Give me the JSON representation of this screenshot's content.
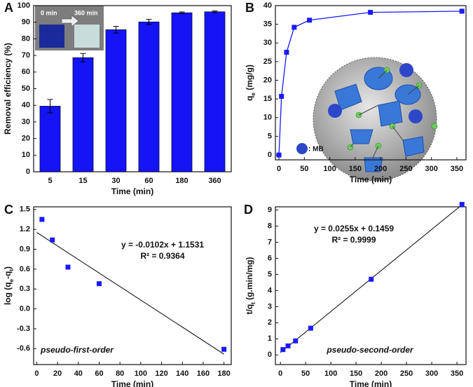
{
  "chart_data": [
    {
      "type": "bar",
      "label": "A",
      "xlabel": "Time (min)",
      "ylabel": [
        "Removal efficiency (%)"
      ],
      "categories": [
        "5",
        "15",
        "30",
        "60",
        "180",
        "360"
      ],
      "values": [
        39.5,
        68.7,
        85.5,
        90.2,
        95.7,
        96.3
      ],
      "errors": [
        4,
        2.5,
        2,
        1.5,
        0.5,
        0.5
      ],
      "color": "#1414f5",
      "ylim": [
        0,
        100
      ],
      "yticks": [
        0,
        10,
        20,
        30,
        40,
        50,
        60,
        70,
        80,
        90,
        100
      ],
      "inset_labels": [
        "0 min",
        "360 min"
      ]
    },
    {
      "type": "line",
      "label": "B",
      "xlabel": "Time (min)",
      "ylabel": [
        "q",
        "e",
        " (mg/g)"
      ],
      "x": [
        0,
        5,
        15,
        30,
        60,
        180,
        360
      ],
      "values": [
        0,
        15.7,
        27.5,
        34.2,
        36.1,
        38.2,
        38.5
      ],
      "color": "#1a1aff",
      "xlim": [
        -7,
        368
      ],
      "xticks": [
        0,
        50,
        100,
        150,
        200,
        250,
        300,
        350
      ],
      "ylim": [
        -1.3,
        40
      ],
      "yticks": [
        0,
        5,
        10,
        15,
        20,
        25,
        30,
        35,
        40
      ],
      "inset_labels": [
        ": MB"
      ]
    },
    {
      "type": "scatter",
      "label": "C",
      "xlabel": "Time (min)",
      "ylabel": [
        "log (q",
        "e",
        "-q",
        "t",
        ")"
      ],
      "x": [
        5,
        15,
        30,
        60,
        180
      ],
      "values": [
        1.35,
        1.04,
        0.63,
        0.38,
        -0.61
      ],
      "color": "#1a1aff",
      "xlim": [
        -3,
        187
      ],
      "xticks": [
        0,
        20,
        40,
        60,
        80,
        100,
        120,
        140,
        160,
        180
      ],
      "ylim": [
        -0.84,
        1.54
      ],
      "yticks": [
        -0.6,
        -0.3,
        {
          "value": 0,
          "label": "0.0"
        },
        0.3,
        0.6,
        0.9,
        1.2,
        1.5
      ],
      "fit": {
        "slope": -0.0102,
        "intercept": 1.1531
      },
      "equation": "y = -0.0102x + 1.1531",
      "r2": "R² = 0.9364",
      "note": "pseudo-first-order"
    },
    {
      "type": "scatter",
      "label": "D",
      "xlabel": "Time (min)",
      "ylabel": [
        "t/q",
        "t",
        " (g.min/mg)"
      ],
      "x": [
        5,
        15,
        30,
        60,
        180,
        360
      ],
      "values": [
        0.33,
        0.56,
        0.87,
        1.66,
        4.7,
        9.35
      ],
      "color": "#1a1aff",
      "xlim": [
        -10,
        368
      ],
      "xticks": [
        0,
        50,
        100,
        150,
        200,
        250,
        300,
        350
      ],
      "ylim": [
        -0.6,
        9.2
      ],
      "yticks": [
        0,
        1,
        2,
        3,
        4,
        5,
        6,
        7,
        8,
        9
      ],
      "fit": {
        "slope": 0.0255,
        "intercept": 0.1459
      },
      "equation": "y = 0.0255x + 0.1459",
      "r2": "R² = 0.9999",
      "note": "pseudo-second-order"
    }
  ]
}
